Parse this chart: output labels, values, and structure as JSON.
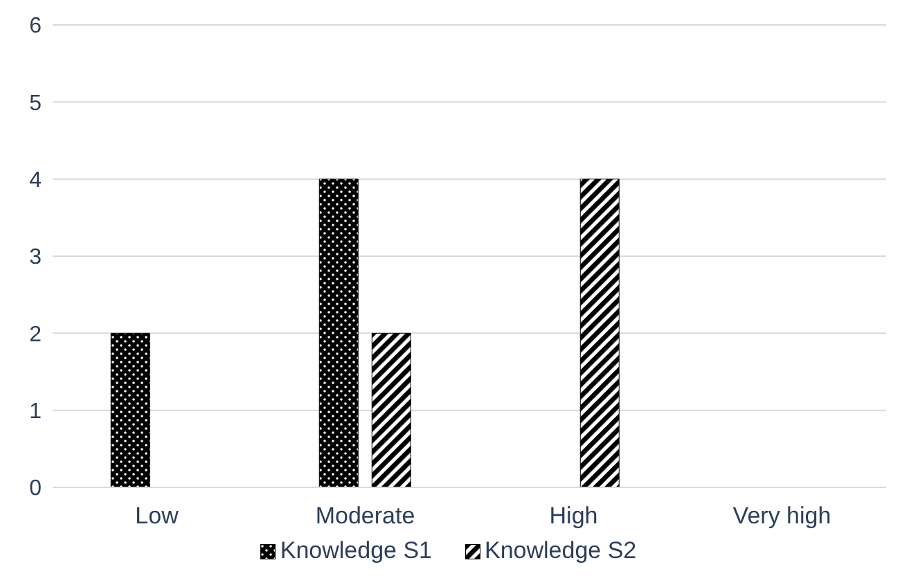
{
  "chart_data": {
    "type": "bar",
    "categories": [
      "Low",
      "Moderate",
      "High",
      "Very high"
    ],
    "series": [
      {
        "name": "Knowledge S1",
        "color": "#000000",
        "values": [
          2,
          4,
          0,
          0
        ]
      },
      {
        "name": "Knowledge S2",
        "color": "#000000",
        "values": [
          0,
          2,
          4,
          0
        ]
      }
    ],
    "ylim": [
      0,
      6
    ],
    "yticks": [
      0,
      1,
      2,
      3,
      4,
      5,
      6
    ],
    "grid": "y",
    "legend": "bottom"
  }
}
